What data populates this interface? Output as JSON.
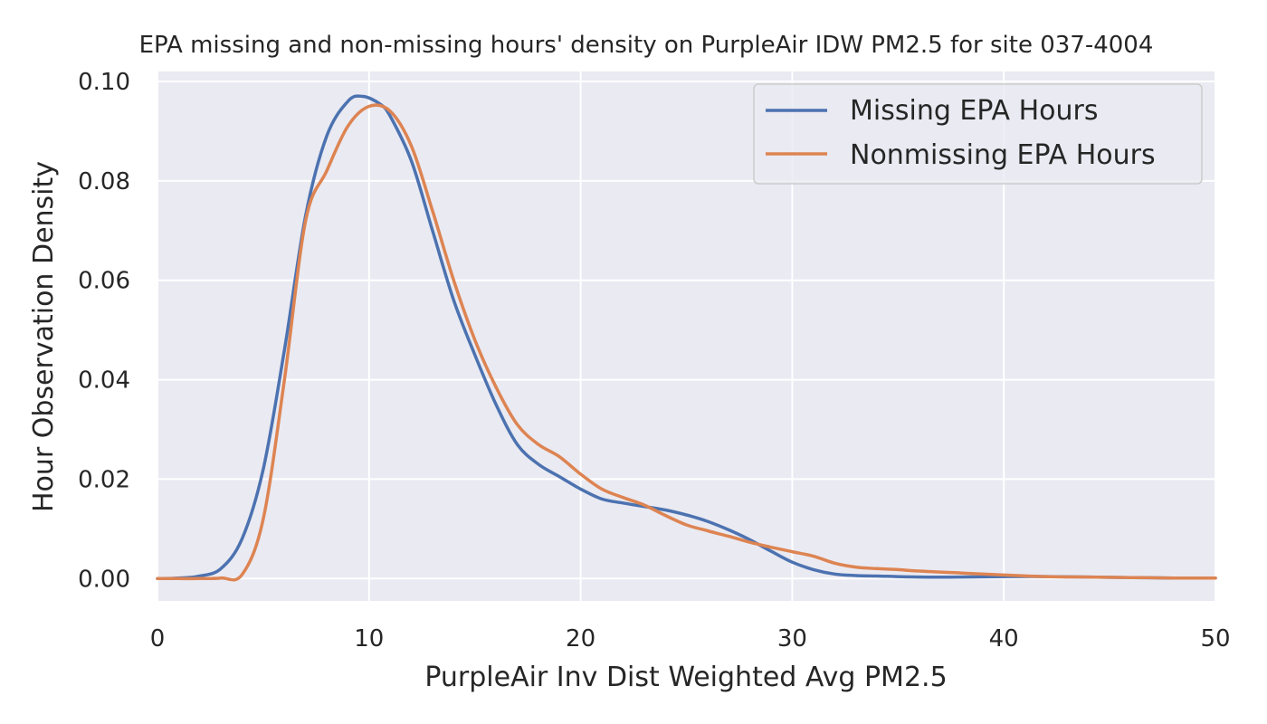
{
  "chart_data": {
    "type": "line",
    "title": "EPA missing and non-missing hours' density on PurpleAir IDW PM2.5 for site 037-4004",
    "xlabel": "PurpleAir Inv Dist Weighted Avg PM2.5",
    "ylabel": "Hour Observation Density",
    "xlim": [
      0,
      50
    ],
    "ylim": [
      -0.0045,
      0.102
    ],
    "x_ticks": [
      0,
      10,
      20,
      30,
      40,
      50
    ],
    "x_tick_labels": [
      "0",
      "10",
      "20",
      "30",
      "40",
      "50"
    ],
    "y_ticks": [
      0.0,
      0.02,
      0.04,
      0.06,
      0.08,
      0.1
    ],
    "y_tick_labels": [
      "0.00",
      "0.02",
      "0.04",
      "0.06",
      "0.08",
      "0.10"
    ],
    "grid": true,
    "legend_position": "top-right",
    "background_color": "#eaeaf2",
    "grid_color": "#ffffff",
    "series": [
      {
        "name": "Missing EPA Hours",
        "color": "#4c72b0",
        "points": [
          [
            0,
            0.0
          ],
          [
            1,
            0.0001
          ],
          [
            2,
            0.0005
          ],
          [
            3,
            0.002
          ],
          [
            4,
            0.008
          ],
          [
            5,
            0.022
          ],
          [
            6,
            0.046
          ],
          [
            7,
            0.073
          ],
          [
            8,
            0.089
          ],
          [
            9,
            0.096
          ],
          [
            9.7,
            0.097
          ],
          [
            10.5,
            0.0955
          ],
          [
            11,
            0.093
          ],
          [
            12,
            0.084
          ],
          [
            13,
            0.07
          ],
          [
            14,
            0.056
          ],
          [
            15,
            0.045
          ],
          [
            16,
            0.035
          ],
          [
            17,
            0.027
          ],
          [
            18,
            0.023
          ],
          [
            19,
            0.0205
          ],
          [
            20,
            0.018
          ],
          [
            21,
            0.016
          ],
          [
            22,
            0.0152
          ],
          [
            23,
            0.0145
          ],
          [
            24,
            0.0138
          ],
          [
            25,
            0.0128
          ],
          [
            26,
            0.0115
          ],
          [
            27,
            0.0098
          ],
          [
            28,
            0.0078
          ],
          [
            29,
            0.0055
          ],
          [
            30,
            0.0033
          ],
          [
            31,
            0.0018
          ],
          [
            32,
            0.0009
          ],
          [
            33,
            0.0006
          ],
          [
            34,
            0.0005
          ],
          [
            36,
            0.0003
          ],
          [
            38,
            0.0003
          ],
          [
            40,
            0.0004
          ],
          [
            42,
            0.0004
          ],
          [
            44,
            0.0003
          ],
          [
            46,
            0.0002
          ],
          [
            48,
            0.0001
          ],
          [
            50,
            0.0001
          ]
        ]
      },
      {
        "name": "Nonmissing EPA Hours",
        "color": "#dd8452",
        "points": [
          [
            0,
            0.0
          ],
          [
            1,
            0.0
          ],
          [
            2,
            0.0
          ],
          [
            3,
            0.0001
          ],
          [
            4,
            0.0008
          ],
          [
            5,
            0.012
          ],
          [
            6,
            0.04
          ],
          [
            7,
            0.072
          ],
          [
            8,
            0.082
          ],
          [
            9,
            0.091
          ],
          [
            10,
            0.095
          ],
          [
            11,
            0.094
          ],
          [
            12,
            0.087
          ],
          [
            13,
            0.074
          ],
          [
            14,
            0.06
          ],
          [
            15,
            0.048
          ],
          [
            16,
            0.0385
          ],
          [
            17,
            0.031
          ],
          [
            18,
            0.027
          ],
          [
            19,
            0.0245
          ],
          [
            20,
            0.021
          ],
          [
            21,
            0.018
          ],
          [
            22,
            0.0163
          ],
          [
            23,
            0.0148
          ],
          [
            24,
            0.0127
          ],
          [
            25,
            0.0108
          ],
          [
            26,
            0.0096
          ],
          [
            27,
            0.0085
          ],
          [
            28,
            0.0073
          ],
          [
            29,
            0.0063
          ],
          [
            30,
            0.0054
          ],
          [
            31,
            0.0045
          ],
          [
            32,
            0.0031
          ],
          [
            33,
            0.0023
          ],
          [
            34,
            0.002
          ],
          [
            35,
            0.0018
          ],
          [
            36,
            0.0015
          ],
          [
            38,
            0.0011
          ],
          [
            40,
            0.0007
          ],
          [
            42,
            0.0004
          ],
          [
            44,
            0.0003
          ],
          [
            46,
            0.0002
          ],
          [
            48,
            0.0001
          ],
          [
            50,
            0.0001
          ]
        ]
      }
    ]
  }
}
